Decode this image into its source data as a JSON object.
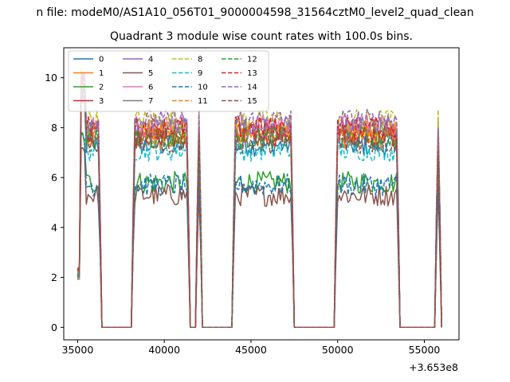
{
  "chart_data": {
    "type": "line",
    "suptitle": "n file: modeM0/AS1A10_056T01_9000004598_31564cztM0_level2_quad_clean",
    "title": "Quadrant 3 module wise count rates with 100.0s bins.",
    "xlabel": "",
    "ylabel": "",
    "x_offset_label": "+3.653e8",
    "xlim": [
      34200,
      57000
    ],
    "ylim": [
      -0.5,
      11.2
    ],
    "xticks": [
      35000,
      40000,
      45000,
      50000,
      55000
    ],
    "xtick_labels": [
      "35000",
      "40000",
      "45000",
      "50000",
      "55000"
    ],
    "yticks": [
      0,
      2,
      4,
      6,
      8,
      10
    ],
    "ytick_labels": [
      "0",
      "2",
      "4",
      "6",
      "8",
      "10"
    ],
    "grid": false,
    "legend_position": "top-left",
    "legend_columns": 4,
    "segments": [
      [
        35000,
        36400
      ],
      [
        38100,
        41500
      ],
      [
        41800,
        42200
      ],
      [
        43900,
        47500
      ],
      [
        49800,
        53600
      ],
      [
        55600,
        56000
      ]
    ],
    "series": [
      {
        "name": "0",
        "color": "#1f77b4",
        "style": "solid",
        "level": 7.3
      },
      {
        "name": "1",
        "color": "#ff7f0e",
        "style": "solid",
        "level": 7.6
      },
      {
        "name": "2",
        "color": "#2ca02c",
        "style": "solid",
        "level": 5.8
      },
      {
        "name": "3",
        "color": "#d62728",
        "style": "solid",
        "level": 7.7
      },
      {
        "name": "4",
        "color": "#9467bd",
        "style": "solid",
        "level": 8.0
      },
      {
        "name": "5",
        "color": "#8c564b",
        "style": "solid",
        "level": 5.3
      },
      {
        "name": "6",
        "color": "#e377c2",
        "style": "solid",
        "level": 8.1
      },
      {
        "name": "7",
        "color": "#7f7f7f",
        "style": "solid",
        "level": 7.9
      },
      {
        "name": "8",
        "color": "#bcbd22",
        "style": "dashed",
        "level": 8.3
      },
      {
        "name": "9",
        "color": "#17becf",
        "style": "dashed",
        "level": 7.1
      },
      {
        "name": "10",
        "color": "#1f77b4",
        "style": "dashed",
        "level": 5.7
      },
      {
        "name": "11",
        "color": "#ff7f0e",
        "style": "dashed",
        "level": 7.8
      },
      {
        "name": "12",
        "color": "#2ca02c",
        "style": "dashed",
        "level": 7.6
      },
      {
        "name": "13",
        "color": "#d62728",
        "style": "dashed",
        "level": 8.0
      },
      {
        "name": "14",
        "color": "#9467bd",
        "style": "dashed",
        "level": 8.3
      },
      {
        "name": "15",
        "color": "#8c564b",
        "style": "dashed",
        "level": 7.4
      }
    ]
  }
}
